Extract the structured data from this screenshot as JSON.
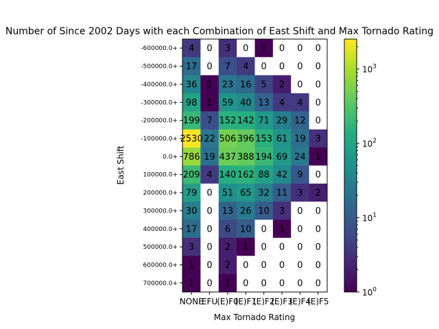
{
  "chart_data": {
    "type": "heatmap",
    "title": "Number of Since 2002 Days with each Combination of East Shift and Max Tornado Rating",
    "xlabel": "Max Tornado Rating",
    "ylabel": "East Shift",
    "x_categories": [
      "NONE",
      "EFU",
      "(E)F0",
      "(E)F1",
      "(E)F2",
      "(E)F3",
      "(E)F4",
      "(E)F5"
    ],
    "y_categories": [
      "-600000.0+",
      "-500000.0+",
      "-400000.0+",
      "-300000.0+",
      "-200000.0+",
      "-100000.0+",
      "0.0+",
      "100000.0+",
      "200000.0+",
      "300000.0+",
      "400000.0+",
      "500000.0+",
      "600000.0+",
      "700000.0+"
    ],
    "values": [
      [
        4,
        0,
        3,
        0,
        1,
        0,
        0,
        0
      ],
      [
        17,
        0,
        7,
        4,
        0,
        0,
        0,
        0
      ],
      [
        36,
        1,
        23,
        16,
        5,
        2,
        0,
        0
      ],
      [
        98,
        1,
        59,
        40,
        13,
        4,
        4,
        0
      ],
      [
        199,
        7,
        152,
        142,
        71,
        29,
        12,
        0
      ],
      [
        2530,
        22,
        506,
        396,
        153,
        61,
        19,
        3
      ],
      [
        786,
        19,
        437,
        388,
        194,
        69,
        24,
        1
      ],
      [
        209,
        4,
        140,
        162,
        88,
        42,
        9,
        0
      ],
      [
        79,
        0,
        51,
        65,
        32,
        11,
        3,
        2
      ],
      [
        30,
        0,
        13,
        26,
        10,
        3,
        0,
        0
      ],
      [
        17,
        0,
        6,
        10,
        0,
        1,
        0,
        0
      ],
      [
        3,
        0,
        2,
        1,
        0,
        0,
        0,
        0
      ],
      [
        1,
        0,
        2,
        0,
        0,
        0,
        0,
        0
      ],
      [
        1,
        0,
        1,
        0,
        0,
        0,
        0,
        0
      ]
    ],
    "color_scale": "log",
    "colormap": "viridis",
    "zero_color": "#ffffff",
    "vmin": 1,
    "vmax": 2530,
    "colorbar_ticks": [
      {
        "value": 1,
        "label": "10",
        "exp": "0"
      },
      {
        "value": 10,
        "label": "10",
        "exp": "1"
      },
      {
        "value": 100,
        "label": "10",
        "exp": "2"
      },
      {
        "value": 1000,
        "label": "10",
        "exp": "3"
      }
    ]
  }
}
